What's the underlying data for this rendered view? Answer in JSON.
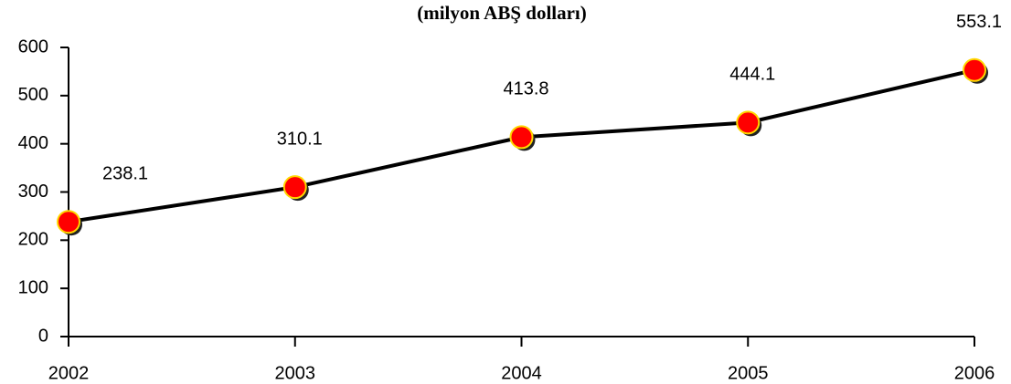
{
  "chart_data": {
    "type": "line",
    "subtitle": "(milyon ABŞ dolları)",
    "categories": [
      "2002",
      "2003",
      "2004",
      "2005",
      "2006"
    ],
    "values": [
      238.1,
      310.1,
      413.8,
      444.1,
      553.1
    ],
    "color": "#000000",
    "marker_color": "#ff0000",
    "marker_edge": "#ffd700",
    "ylim": [
      0,
      600
    ],
    "yticks": [
      0,
      100,
      200,
      300,
      400,
      500,
      600
    ],
    "grid": false
  }
}
